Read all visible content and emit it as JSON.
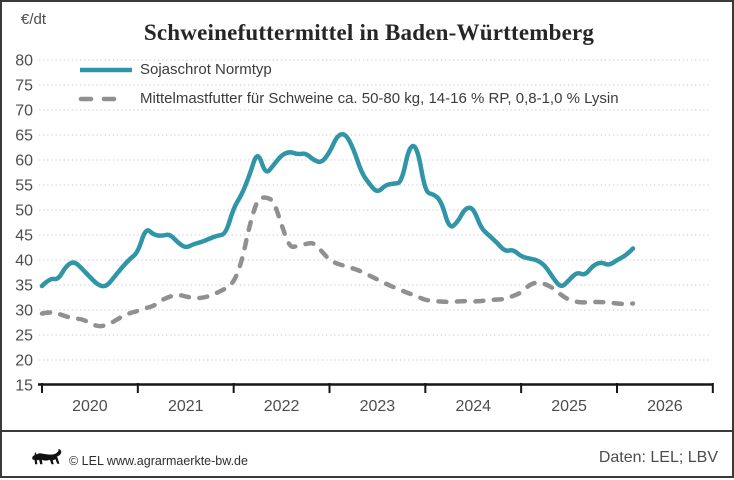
{
  "header": {
    "unit_label": "€/dt",
    "title": "Schweinefuttermittel in Baden-Württemberg"
  },
  "footer": {
    "copyright": "© LEL www.agrarmaerkte-bw.de",
    "source": "Daten: LEL; LBV",
    "logo_name": "baden-wuerttemberg-lion-logo"
  },
  "colors": {
    "soja_line": "#3096a7",
    "mittel_line": "#909090",
    "grid": "#c9c9c9",
    "axis": "#161616",
    "tick_text": "#4d4d4d",
    "title_text": "#262626",
    "border": "#3a3a3a"
  },
  "chart_data": {
    "type": "line",
    "title": "Schweinefuttermittel in Baden-Württemberg",
    "ylabel": "€/dt",
    "xlabel": "",
    "ylim": [
      15,
      80
    ],
    "y_tick_step": 5,
    "grid": "horizontal-dotted",
    "legend_position": "top-left-inside",
    "x_interval": "monthly",
    "x_start": "2020-01",
    "x_end": "2026-03",
    "x_tick_years": [
      2020,
      2021,
      2022,
      2023,
      2024,
      2025,
      2026
    ],
    "series": [
      {
        "name": "Sojaschrot Normtyp",
        "style": "solid",
        "values": [
          34.8,
          36.4,
          36.0,
          38.8,
          39.8,
          38.3,
          36.6,
          35.0,
          34.6,
          36.5,
          38.5,
          40.2,
          41.5,
          46.5,
          45.0,
          44.8,
          45.2,
          43.5,
          42.4,
          43.2,
          43.6,
          44.3,
          44.9,
          45.2,
          50.5,
          53.0,
          57.0,
          62.0,
          57.0,
          59.0,
          61.0,
          61.7,
          61.1,
          61.4,
          60.0,
          59.4,
          61.5,
          65.0,
          65.3,
          62.3,
          57.5,
          55.2,
          53.4,
          55.0,
          55.3,
          55.4,
          62.9,
          62.7,
          53.5,
          53.2,
          51.8,
          46.2,
          47.5,
          50.4,
          50.5,
          46.3,
          44.9,
          43.4,
          41.7,
          42.1,
          40.7,
          40.3,
          40.0,
          38.9,
          36.4,
          34.4,
          36.0,
          37.6,
          36.9,
          38.9,
          39.6,
          38.9,
          40.0,
          40.8,
          42.3
        ]
      },
      {
        "name": "Mittelmastfutter für Schweine ca. 50-80 kg, 14-16 % RP, 0,8-1,0 % Lysin",
        "style": "dashed",
        "values": [
          29.3,
          29.6,
          29.3,
          28.7,
          28.3,
          28.2,
          27.4,
          26.7,
          26.9,
          27.7,
          28.7,
          29.4,
          29.8,
          30.4,
          30.8,
          32.0,
          32.7,
          33.1,
          32.7,
          32.4,
          32.4,
          32.8,
          33.5,
          34.3,
          35.5,
          39.5,
          47.0,
          52.3,
          52.6,
          51.9,
          47.0,
          42.5,
          42.8,
          43.2,
          43.5,
          41.8,
          40.0,
          39.2,
          38.8,
          38.3,
          37.7,
          36.9,
          36.1,
          35.3,
          34.6,
          33.9,
          33.3,
          32.7,
          32.0,
          31.8,
          31.7,
          31.6,
          31.7,
          31.8,
          31.7,
          31.8,
          32.0,
          32.1,
          32.2,
          32.8,
          33.5,
          35.0,
          35.6,
          35.2,
          34.4,
          33.0,
          32.0,
          31.6,
          31.5,
          31.6,
          31.6,
          31.5,
          31.3,
          31.2,
          31.3
        ]
      }
    ]
  }
}
